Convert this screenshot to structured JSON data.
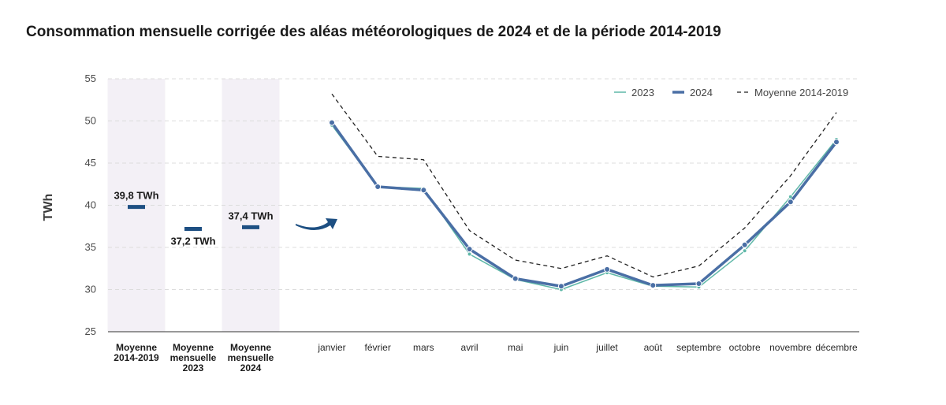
{
  "title": "Consommation mensuelle corrigée des aléas météorologiques de 2024 et de la période 2014-2019",
  "chart_data": {
    "type": "line",
    "ylabel": "TWh",
    "ylim": [
      25,
      55
    ],
    "yticks": [
      25,
      30,
      35,
      40,
      45,
      50,
      55
    ],
    "grid": true,
    "legend_position": "top-right",
    "summary": {
      "categories": [
        [
          "Moyenne",
          "2014-2019"
        ],
        [
          "Moyenne",
          "mensuelle",
          "2023"
        ],
        [
          "Moyenne",
          "mensuelle",
          "2024"
        ]
      ],
      "values": [
        39.8,
        37.2,
        37.4
      ],
      "labels": [
        "39,8 TWh",
        "37,2 TWh",
        "37,4 TWh"
      ]
    },
    "x": [
      "janvier",
      "février",
      "mars",
      "avril",
      "mai",
      "juin",
      "juillet",
      "août",
      "septembre",
      "octobre",
      "novembre",
      "décembre"
    ],
    "series": [
      {
        "name": "2023",
        "values": [
          49.5,
          42.2,
          42.0,
          34.2,
          31.2,
          30.0,
          32.0,
          30.4,
          30.3,
          34.6,
          41.0,
          47.8
        ]
      },
      {
        "name": "2024",
        "values": [
          49.8,
          42.2,
          41.8,
          34.8,
          31.3,
          30.4,
          32.4,
          30.5,
          30.7,
          35.3,
          40.4,
          47.5
        ]
      },
      {
        "name": "Moyenne 2014-2019",
        "values": [
          53.2,
          45.8,
          45.4,
          37.0,
          33.5,
          32.5,
          34.0,
          31.5,
          32.8,
          37.3,
          43.5,
          51.0
        ]
      }
    ],
    "colors": {
      "2023": "#5fb8a8",
      "2024": "#4a6fa5",
      "Moyenne 2014-2019": "#222222",
      "marker": "#1d4f82",
      "arrow": "#1d4f82",
      "shade": "#f3f0f6",
      "grid": "#dcdcdc"
    }
  }
}
